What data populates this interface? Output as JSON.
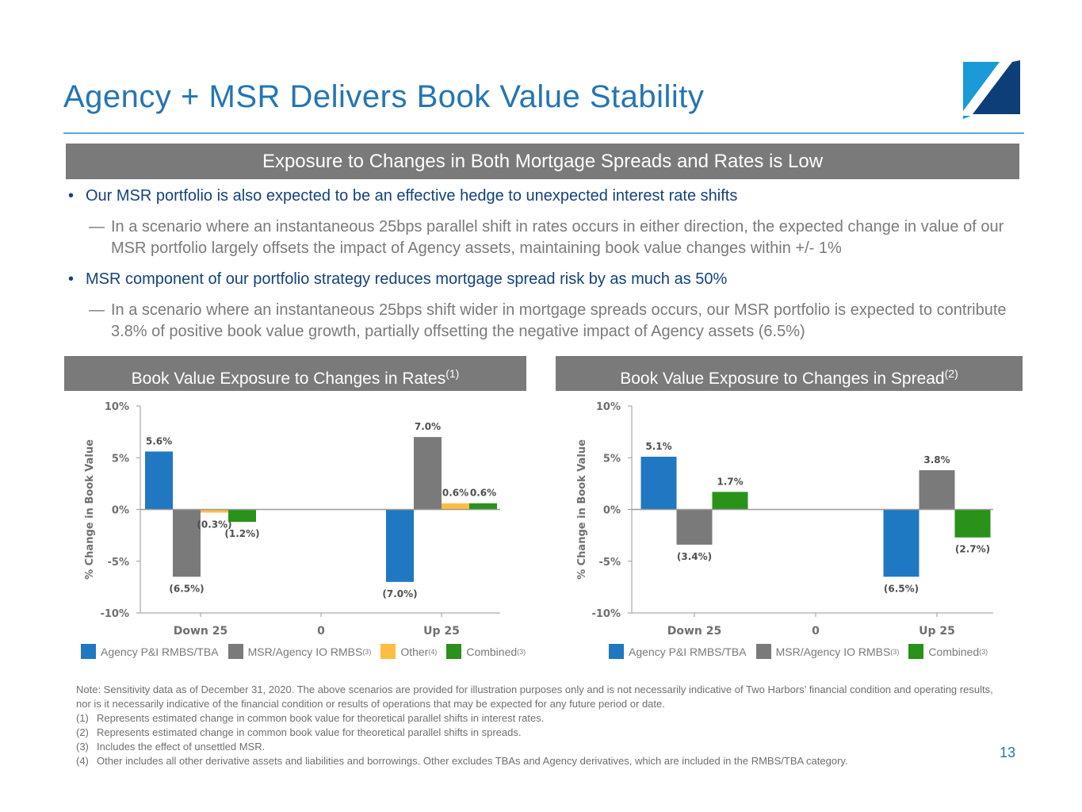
{
  "title": "Agency + MSR Delivers Book Value Stability",
  "banner": "Exposure to Changes in Both Mortgage Spreads and Rates is Low",
  "bullets": [
    {
      "text": "Our MSR portfolio is also expected to be an effective hedge to unexpected interest rate shifts",
      "sub": "In a scenario where an instantaneous 25bps parallel shift in rates occurs in either direction, the expected change in value of our MSR portfolio largely offsets the impact of Agency assets, maintaining book value changes within +/- 1%"
    },
    {
      "text": "MSR component of our portfolio strategy reduces mortgage spread risk by as much as 50%",
      "sub": "In a scenario where an instantaneous 25bps shift wider in mortgage spreads occurs, our MSR portfolio is expected to contribute 3.8% of positive book value growth, partially offsetting the negative impact of Agency assets (6.5%)"
    }
  ],
  "dash": "—",
  "colors": {
    "agency": "#1f78c1",
    "msr": "#7a7a7a",
    "other": "#fbbe43",
    "combined": "#2a911a",
    "title": "#2575b3",
    "header_bg": "#7a7a7a"
  },
  "chart_headers": {
    "rates": {
      "text": "Book Value Exposure to Changes in Rates",
      "sup": "(1)"
    },
    "spread": {
      "text": "Book Value Exposure to Changes in Spread",
      "sup": "(2)"
    }
  },
  "chart_data": [
    {
      "type": "bar",
      "categories": [
        "Down 25",
        "0",
        "Up 25"
      ],
      "ylabel": "% Change in Book Value",
      "ylim": [
        -10,
        10
      ],
      "yticks": [
        "10%",
        "5%",
        "0%",
        "-5%",
        "-10%"
      ],
      "series": [
        {
          "name": "Agency P&I RMBS/TBA",
          "color": "#1f78c1",
          "values": [
            5.6,
            null,
            -7.0
          ],
          "labels": [
            "5.6%",
            null,
            "(7.0%)"
          ]
        },
        {
          "name": "MSR/Agency IO RMBS",
          "sup": "(3)",
          "color": "#7a7a7a",
          "values": [
            -6.5,
            null,
            7.0
          ],
          "labels": [
            "(6.5%)",
            null,
            "7.0%"
          ]
        },
        {
          "name": "Other",
          "sup": "(4)",
          "color": "#fbbe43",
          "values": [
            -0.3,
            null,
            0.6
          ],
          "labels": [
            "(0.3%)",
            null,
            "0.6%"
          ]
        },
        {
          "name": "Combined",
          "sup": "(3)",
          "color": "#2a911a",
          "values": [
            -1.2,
            null,
            0.6
          ],
          "labels": [
            "(1.2%)",
            null,
            "0.6%"
          ]
        }
      ]
    },
    {
      "type": "bar",
      "categories": [
        "Down 25",
        "0",
        "Up 25"
      ],
      "ylabel": "% Change in Book Value",
      "ylim": [
        -10,
        10
      ],
      "yticks": [
        "10%",
        "5%",
        "0%",
        "-5%",
        "-10%"
      ],
      "series": [
        {
          "name": "Agency P&I RMBS/TBA",
          "color": "#1f78c1",
          "values": [
            5.1,
            null,
            -6.5
          ],
          "labels": [
            "5.1%",
            null,
            "(6.5%)"
          ]
        },
        {
          "name": "MSR/Agency IO RMBS",
          "sup": "(3)",
          "color": "#7a7a7a",
          "values": [
            -3.4,
            null,
            3.8
          ],
          "labels": [
            "(3.4%)",
            null,
            "3.8%"
          ]
        },
        {
          "name": "Combined",
          "sup": "(3)",
          "color": "#2a911a",
          "values": [
            1.7,
            null,
            -2.7
          ],
          "labels": [
            "1.7%",
            null,
            "(2.7%)"
          ]
        }
      ]
    }
  ],
  "notes": {
    "main": "Note: Sensitivity data as of December 31, 2020.  The above scenarios are provided for illustration purposes only and is not necessarily indicative of Two Harbors’ financial condition and operating results, nor is it necessarily indicative of the financial condition or results of operations that may be expected for any future period or date.",
    "footnotes": [
      {
        "num": "(1)",
        "text": "Represents estimated change in common book value for theoretical parallel shifts in interest rates."
      },
      {
        "num": "(2)",
        "text": "Represents estimated change in common book value for theoretical parallel shifts in spreads."
      },
      {
        "num": "(3)",
        "text": "Includes the effect of unsettled MSR."
      },
      {
        "num": "(4)",
        "text": "Other includes all other derivative assets and liabilities and borrowings. Other excludes TBAs and Agency derivatives, which are included in the RMBS/TBA category."
      }
    ]
  },
  "page_number": "13"
}
